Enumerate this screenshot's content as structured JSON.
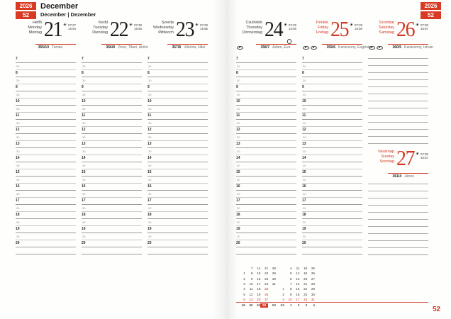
{
  "accent_red": "#d13823",
  "header": {
    "year": "2026",
    "week": "52",
    "month_title": "December",
    "month_subtitle": "December | Dezember"
  },
  "page_number": "52",
  "icons": {
    "sun_icon": "sunrise-sunset-icon",
    "moon_icon": "full-moon-icon",
    "oval_icon": "holiday-marker-icon"
  },
  "days": [
    {
      "names": [
        "Hétfő",
        "Monday",
        "Montag"
      ],
      "date": "21",
      "sunrise": "07:27",
      "sunset": "15:54",
      "day_of_year": "355/10",
      "name_days": "Tamás",
      "is_red": false,
      "oval_icons": 0,
      "full_moon": false
    },
    {
      "names": [
        "Kedd",
        "Tuesday",
        "Dienstag"
      ],
      "date": "22",
      "sunrise": "07:28",
      "sunset": "15:55",
      "day_of_year": "356/9",
      "name_days": "Zénó, Tifani, Anikó",
      "is_red": false,
      "oval_icons": 0,
      "full_moon": false
    },
    {
      "names": [
        "Szerda",
        "Wednesday",
        "Mittwoch"
      ],
      "date": "23",
      "sunrise": "07:29",
      "sunset": "15:55",
      "day_of_year": "357/8",
      "name_days": "Viktória, Niké",
      "is_red": false,
      "oval_icons": 0,
      "full_moon": false
    },
    {
      "names": [
        "Csütörtök",
        "Thursday",
        "Donnerstag"
      ],
      "date": "24",
      "sunrise": "07:29",
      "sunset": "15:56",
      "day_of_year": "358/7",
      "name_days": "Ádám, Éva",
      "is_red": false,
      "oval_icons": 1,
      "full_moon": true
    },
    {
      "names": [
        "Péntek",
        "Friday",
        "Freitag"
      ],
      "date": "25",
      "sunrise": "07:29",
      "sunset": "15:56",
      "day_of_year": "359/6",
      "name_days": "Karácsony, Eugénia",
      "is_red": true,
      "oval_icons": 2,
      "full_moon": false
    },
    {
      "names": [
        "Szombat",
        "Saturday",
        "Samstag"
      ],
      "date": "26",
      "sunrise": "07:30",
      "sunset": "15:57",
      "day_of_year": "360/5",
      "name_days": "Karácsony, István",
      "is_red": true,
      "oval_icons": 2,
      "full_moon": false
    },
    {
      "names": [
        "Vasárnap",
        "Sunday",
        "Sonntag"
      ],
      "date": "27",
      "sunrise": "07:30",
      "sunset": "15:57",
      "day_of_year": "361/4",
      "name_days": "János",
      "is_red": true,
      "oval_icons": 0,
      "full_moon": false
    }
  ],
  "schedule": {
    "hours": [
      "7",
      "8",
      "9",
      "10",
      "11",
      "12",
      "13",
      "14",
      "15",
      "16",
      "17",
      "18",
      "19",
      "20"
    ],
    "half_hour_label": "30"
  },
  "minical": {
    "current_week": "52",
    "months": [
      {
        "rows": [
          [
            "",
            "7",
            "14",
            "21",
            "28"
          ],
          [
            "1",
            "8",
            "15",
            "22",
            "29"
          ],
          [
            "2",
            "9",
            "16",
            "23",
            "30"
          ],
          [
            "3",
            "10",
            "17",
            "24",
            "31"
          ],
          [
            "4",
            "11",
            "18",
            "25",
            ""
          ],
          [
            "5",
            "12",
            "19",
            "26",
            ""
          ],
          [
            "6",
            "13",
            "20",
            "27",
            ""
          ]
        ],
        "weeks": [
          "49",
          "50",
          "51",
          "52",
          "53"
        ],
        "red_dates": [
          "25",
          "26"
        ]
      },
      {
        "rows": [
          [
            "",
            "4",
            "11",
            "18",
            "25"
          ],
          [
            "",
            "5",
            "12",
            "19",
            "26"
          ],
          [
            "",
            "6",
            "13",
            "20",
            "27"
          ],
          [
            "",
            "7",
            "14",
            "21",
            "28"
          ],
          [
            "1",
            "8",
            "15",
            "22",
            "29"
          ],
          [
            "2",
            "9",
            "16",
            "23",
            "30"
          ],
          [
            "3",
            "10",
            "17",
            "24",
            "31"
          ]
        ],
        "weeks": [
          "53",
          "1",
          "2",
          "3",
          "4"
        ],
        "red_dates": [
          "1"
        ]
      }
    ]
  }
}
